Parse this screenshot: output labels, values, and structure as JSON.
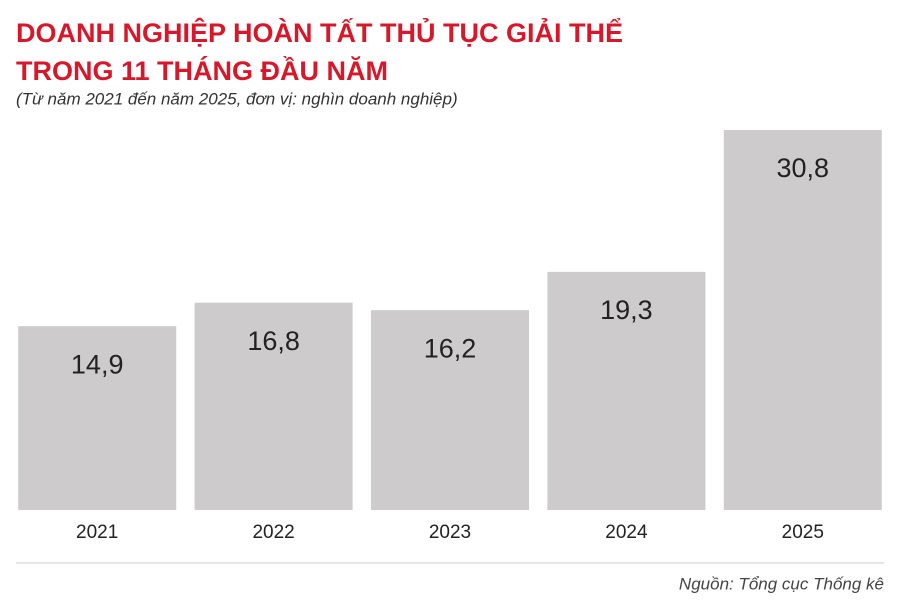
{
  "chart_data": {
    "type": "bar",
    "title": [
      "DOANH NGHIỆP HOÀN TẤT THỦ TỤC GIẢI THỂ",
      "TRONG 11 THÁNG ĐẦU NĂM"
    ],
    "subtitle": "(Từ năm 2021 đến năm 2025, đơn vị: nghìn doanh nghiệp)",
    "categories": [
      "2021",
      "2022",
      "2023",
      "2024",
      "2025"
    ],
    "values": [
      14.9,
      16.8,
      16.2,
      19.3,
      30.8
    ],
    "value_labels": [
      "14,9",
      "16,8",
      "16,2",
      "19,3",
      "30,8"
    ],
    "color": "#cdcbcc",
    "source": "Nguồn: Tổng cục Thống kê"
  }
}
